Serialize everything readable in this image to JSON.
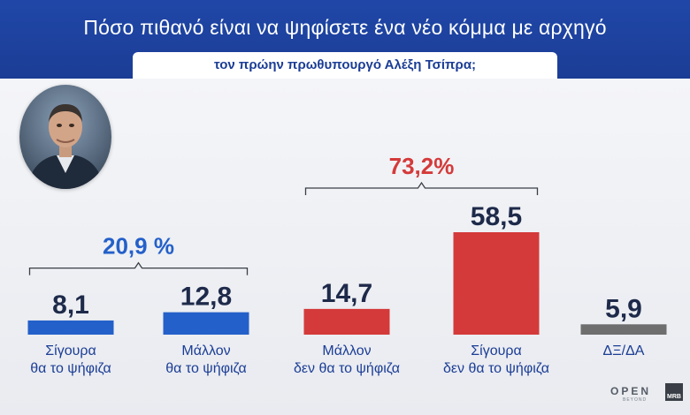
{
  "header": {
    "title": "Πόσο πιθανό είναι να ψηφίσετε ένα νέο κόμμα με αρχηγό",
    "subtitle": "τον πρώην πρωθυπουργό Αλέξη Τσίπρα;"
  },
  "colors": {
    "header_blue": "#1b3d95",
    "bar_blue": "#2460c9",
    "bar_red": "#d43a3a",
    "bar_grey": "#6e6e6e"
  },
  "logos": {
    "open": "OPEN",
    "open_sub": "BEYOND",
    "mrb": "MRB"
  },
  "chart_data": {
    "type": "bar",
    "categories": [
      [
        "Σίγουρα",
        "θα το ψήφιζα"
      ],
      [
        "Μάλλον",
        "θα το ψήφιζα"
      ],
      [
        "Μάλλον",
        "δεν θα το ψήφιζα"
      ],
      [
        "Σίγουρα",
        "δεν θα το ψήφιζα"
      ],
      [
        "ΔΞ/ΔΑ"
      ]
    ],
    "values": [
      8.1,
      12.8,
      14.7,
      58.5,
      5.9
    ],
    "value_labels": [
      "8,1",
      "12,8",
      "14,7",
      "58,5",
      "5,9"
    ],
    "bar_colors": [
      "#2460c9",
      "#2460c9",
      "#d43a3a",
      "#d43a3a",
      "#6e6e6e"
    ],
    "groups": [
      {
        "label": "20,9 %",
        "from": 0,
        "to": 1,
        "color": "#2460c9"
      },
      {
        "label": "73,2%",
        "from": 2,
        "to": 3,
        "color": "#d43a3a"
      }
    ],
    "ylim": [
      0,
      58.5
    ],
    "grid": false,
    "legend": "none"
  }
}
